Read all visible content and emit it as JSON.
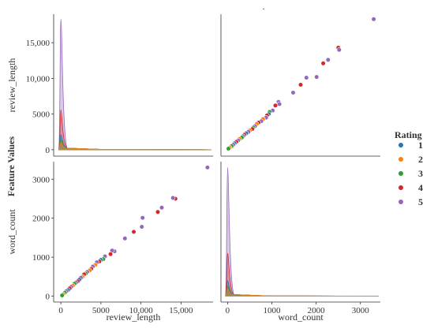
{
  "chart_data": {
    "type": "scatter",
    "title": ".",
    "ylabel": "Feature Values",
    "legend": {
      "title": "Rating",
      "placement": "right",
      "entries": [
        {
          "label": "1",
          "color": "#1f77b4"
        },
        {
          "label": "2",
          "color": "#ff7f0e"
        },
        {
          "label": "3",
          "color": "#2ca02c"
        },
        {
          "label": "4",
          "color": "#d62728"
        },
        {
          "label": "5",
          "color": "#9467bd"
        }
      ]
    },
    "variables": [
      "review_length",
      "word_count"
    ],
    "axes": {
      "review_length": {
        "range": [
          -900,
          19000
        ],
        "ticks": [
          0,
          5000,
          10000,
          15000
        ],
        "tick_labels": [
          "0",
          "5000",
          "10,000",
          "15,000"
        ]
      },
      "word_count": {
        "range": [
          -150,
          3450
        ],
        "ticks": [
          0,
          1000,
          2000,
          3000
        ],
        "tick_labels": [
          "0",
          "1000",
          "2000",
          "3000"
        ]
      }
    },
    "grid": false,
    "panels": [
      {
        "row": 0,
        "col": 0,
        "kind": "density",
        "variable": "review_length",
        "y_axis_label": "review_length"
      },
      {
        "row": 0,
        "col": 1,
        "kind": "scatter",
        "x": "word_count",
        "y": "review_length"
      },
      {
        "row": 1,
        "col": 0,
        "kind": "scatter",
        "x": "review_length",
        "y": "word_count",
        "x_axis_label": "review_length",
        "y_axis_label": "word_count"
      },
      {
        "row": 1,
        "col": 1,
        "kind": "density",
        "variable": "word_count",
        "x_axis_label": "word_count"
      }
    ],
    "density_peaks": {
      "review_length": {
        "1": 2100,
        "2": 1000,
        "3": 1400,
        "4": 5600,
        "5": 18300
      },
      "word_count": {
        "1": 400,
        "2": 180,
        "3": 260,
        "4": 1100,
        "5": 3300
      }
    },
    "points": [
      {
        "review_length": 18300,
        "word_count": 3300,
        "rating": "5"
      },
      {
        "review_length": 14300,
        "word_count": 2500,
        "rating": "4"
      },
      {
        "review_length": 14000,
        "word_count": 2520,
        "rating": "5"
      },
      {
        "review_length": 12600,
        "word_count": 2270,
        "rating": "5"
      },
      {
        "review_length": 12100,
        "word_count": 2160,
        "rating": "4"
      },
      {
        "review_length": 10200,
        "word_count": 2010,
        "rating": "5"
      },
      {
        "review_length": 10100,
        "word_count": 1780,
        "rating": "5"
      },
      {
        "review_length": 9100,
        "word_count": 1650,
        "rating": "4"
      },
      {
        "review_length": 8000,
        "word_count": 1480,
        "rating": "5"
      },
      {
        "review_length": 6700,
        "word_count": 1150,
        "rating": "5"
      },
      {
        "review_length": 6400,
        "word_count": 1170,
        "rating": "5"
      },
      {
        "review_length": 6200,
        "word_count": 1080,
        "rating": "4"
      },
      {
        "review_length": 5500,
        "word_count": 1020,
        "rating": "5"
      },
      {
        "review_length": 5300,
        "word_count": 950,
        "rating": "3"
      },
      {
        "review_length": 5000,
        "word_count": 930,
        "rating": "1"
      },
      {
        "review_length": 4800,
        "word_count": 890,
        "rating": "4"
      },
      {
        "review_length": 4500,
        "word_count": 870,
        "rating": "5"
      },
      {
        "review_length": 4300,
        "word_count": 800,
        "rating": "2"
      },
      {
        "review_length": 4000,
        "word_count": 760,
        "rating": "5"
      },
      {
        "review_length": 3800,
        "word_count": 700,
        "rating": "4"
      },
      {
        "review_length": 3600,
        "word_count": 660,
        "rating": "2"
      },
      {
        "review_length": 3300,
        "word_count": 620,
        "rating": "5"
      },
      {
        "review_length": 3100,
        "word_count": 580,
        "rating": "3"
      },
      {
        "review_length": 2900,
        "word_count": 560,
        "rating": "4"
      },
      {
        "review_length": 2700,
        "word_count": 500,
        "rating": "2"
      },
      {
        "review_length": 2500,
        "word_count": 470,
        "rating": "5"
      },
      {
        "review_length": 2300,
        "word_count": 420,
        "rating": "1"
      },
      {
        "review_length": 2100,
        "word_count": 380,
        "rating": "4"
      },
      {
        "review_length": 1900,
        "word_count": 350,
        "rating": "5"
      },
      {
        "review_length": 1700,
        "word_count": 320,
        "rating": "3"
      },
      {
        "review_length": 1500,
        "word_count": 270,
        "rating": "2"
      },
      {
        "review_length": 1300,
        "word_count": 240,
        "rating": "5"
      },
      {
        "review_length": 1100,
        "word_count": 200,
        "rating": "4"
      },
      {
        "review_length": 900,
        "word_count": 160,
        "rating": "1"
      },
      {
        "review_length": 700,
        "word_count": 130,
        "rating": "5"
      },
      {
        "review_length": 500,
        "word_count": 90,
        "rating": "3"
      },
      {
        "review_length": 300,
        "word_count": 50,
        "rating": "2"
      },
      {
        "review_length": 150,
        "word_count": 20,
        "rating": "3"
      }
    ]
  }
}
